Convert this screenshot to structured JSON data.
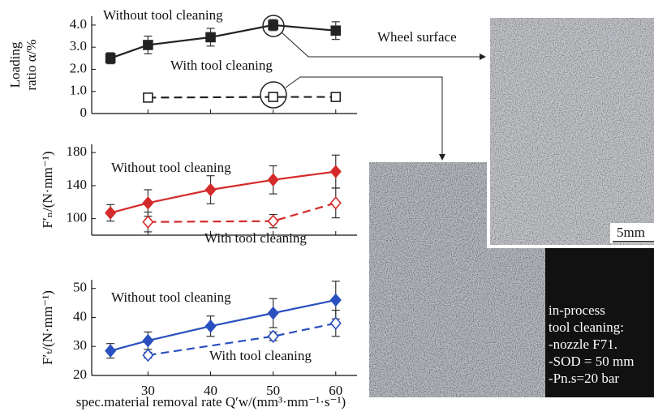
{
  "chart_data": [
    {
      "type": "line",
      "ylabel": [
        "Loading",
        "ratio α/%"
      ],
      "xlim": [
        21,
        63.4
      ],
      "ylim": [
        0,
        4.4
      ],
      "xticks": [
        30,
        40,
        50,
        60
      ],
      "xtick_labels": false,
      "yticks": [
        0,
        {
          "value": 1,
          "label": "1.0"
        },
        {
          "value": 2,
          "label": "2.0"
        },
        {
          "value": 3,
          "label": "3.0"
        },
        {
          "value": 4,
          "label": "4.0"
        }
      ],
      "series": [
        {
          "name": "Without tool cleaning",
          "color": "#222222",
          "marker": "square",
          "filled": true,
          "dashed": false,
          "x": [
            24,
            30,
            40,
            50,
            60
          ],
          "values": [
            2.5,
            3.1,
            3.45,
            4.0,
            3.75
          ],
          "errors": [
            0.25,
            0.4,
            0.4,
            0.25,
            0.4
          ]
        },
        {
          "name": "With  tool cleaning",
          "color": "#222222",
          "marker": "square",
          "filled": false,
          "dashed": true,
          "x": [
            30,
            50,
            60
          ],
          "values": [
            0.72,
            0.75,
            0.75
          ],
          "errors": [
            0,
            0,
            0
          ]
        }
      ]
    },
    {
      "type": "line",
      "ylabel": [
        "F′ₙ/(N·mm⁻¹)"
      ],
      "xlim": [
        21,
        63.4
      ],
      "ylim": [
        80,
        190
      ],
      "xticks": [
        30,
        40,
        50,
        60
      ],
      "xtick_labels": false,
      "yticks": [
        100,
        140,
        180
      ],
      "series": [
        {
          "name": "Without tool cleaning",
          "color": "#d42a2a",
          "marker": "diamond",
          "filled": true,
          "dashed": false,
          "x": [
            24,
            30,
            40,
            50,
            60
          ],
          "values": [
            107,
            119,
            135,
            147,
            157
          ],
          "errors": [
            10,
            16,
            17,
            17,
            20
          ]
        },
        {
          "name": "With  tool cleaning",
          "color": "#d42a2a",
          "marker": "diamond",
          "filled": false,
          "dashed": true,
          "x": [
            30,
            50,
            60
          ],
          "values": [
            96,
            97,
            119
          ],
          "errors": [
            12,
            8,
            18
          ]
        }
      ]
    },
    {
      "type": "line",
      "ylabel": [
        "F′ₜ/(N·mm⁻¹)"
      ],
      "xlabel": "spec.material removal rate Q′w/(mm³·mm⁻¹·s⁻¹)",
      "xlim": [
        21,
        63.4
      ],
      "ylim": [
        20,
        53
      ],
      "xticks": [
        30,
        40,
        50,
        60
      ],
      "xtick_labels": true,
      "yticks": [
        20,
        30,
        40,
        50
      ],
      "series": [
        {
          "name": "Without tool cleaning",
          "color": "#2a4fbf",
          "marker": "diamond",
          "filled": true,
          "dashed": false,
          "x": [
            24,
            30,
            40,
            50,
            60
          ],
          "values": [
            28.5,
            32,
            37,
            41.5,
            46
          ],
          "errors": [
            2.5,
            3,
            3.5,
            5,
            6.5
          ]
        },
        {
          "name": "With  tool cleaning",
          "color": "#2a4fbf",
          "marker": "diamond",
          "filled": false,
          "dashed": true,
          "x": [
            30,
            50,
            60
          ],
          "values": [
            27,
            33.5,
            38
          ],
          "errors": [
            1,
            1.5,
            4.5
          ]
        }
      ]
    }
  ],
  "figure": {
    "wheel_surface": "Wheel surface",
    "scale": "5mm",
    "note": [
      "in-process",
      "tool cleaning:",
      "-nozzle F71.",
      "-SOD = 50 mm",
      "-Pn.s=20 bar"
    ]
  }
}
